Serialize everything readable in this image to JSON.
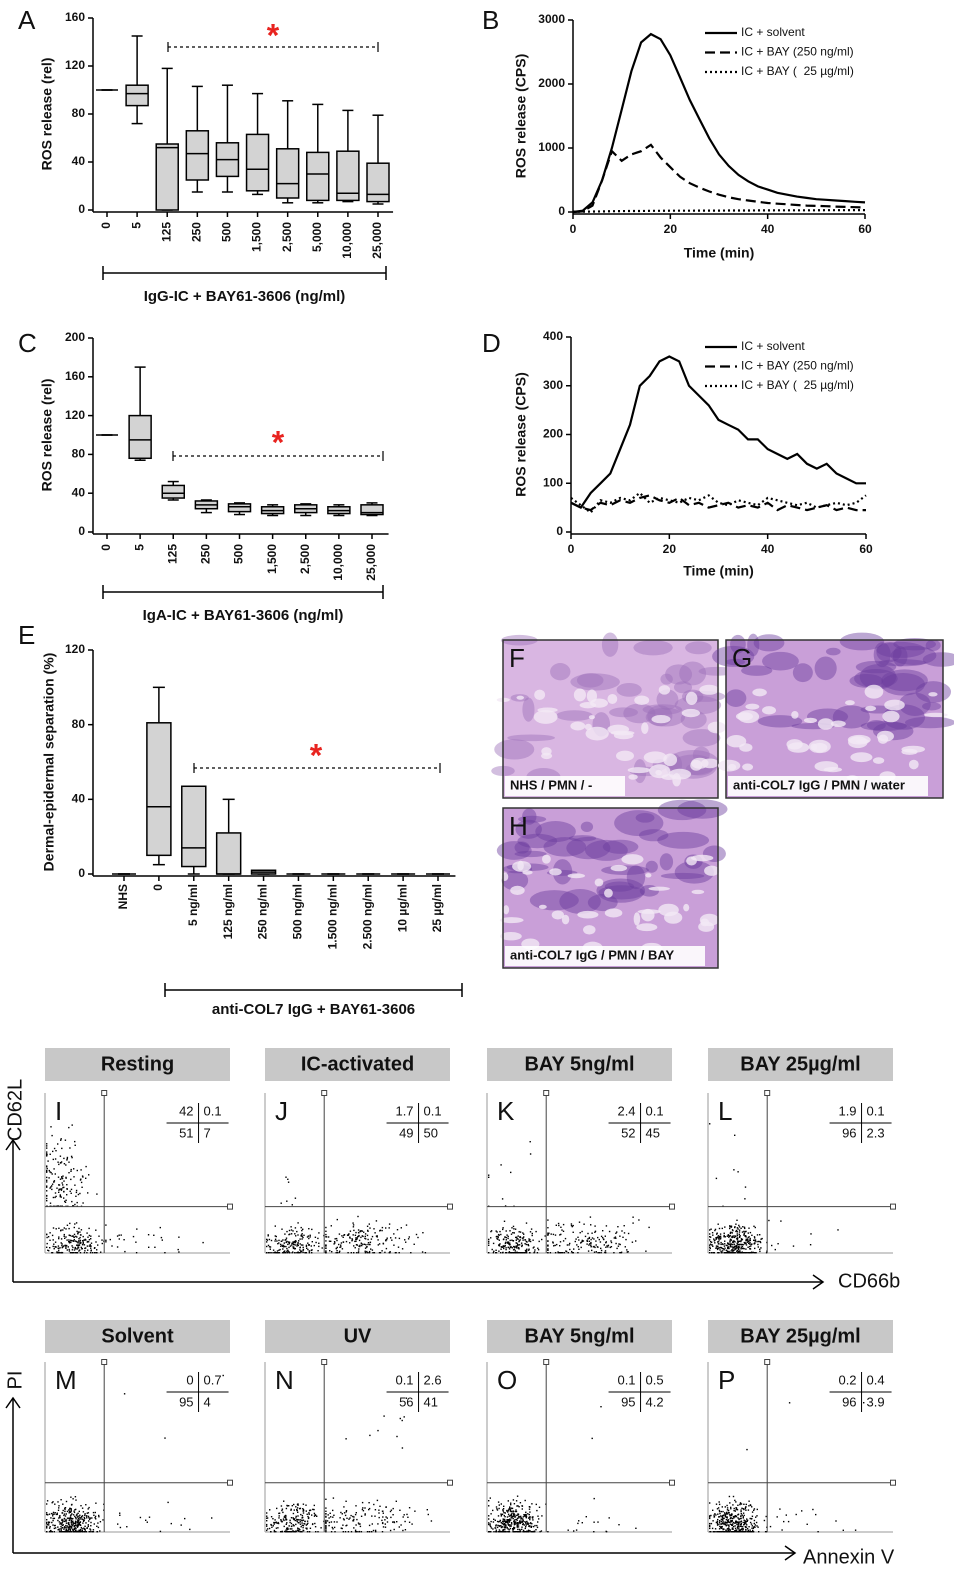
{
  "chart_data": [
    {
      "type": "box",
      "label": "A",
      "ylabel": "ROS release (rel)",
      "xlabel": "IgG-IC + BAY61-3606 (ng/ml)",
      "annotation": "*",
      "color": "#d3d3d3",
      "categories": [
        "0",
        "5",
        "125",
        "250",
        "500",
        "1,500",
        "2,500",
        "5,000",
        "10,000",
        "25,000"
      ],
      "boxes": [
        {
          "min": 100,
          "q1": 100,
          "median": 100,
          "q3": 100,
          "max": 100
        },
        {
          "min": 72,
          "q1": 87,
          "median": 97,
          "q3": 104,
          "max": 145
        },
        {
          "min": 0,
          "q1": 0,
          "median": 52,
          "q3": 55,
          "max": 118
        },
        {
          "min": 15,
          "q1": 25,
          "median": 47,
          "q3": 66,
          "max": 103
        },
        {
          "min": 15,
          "q1": 28,
          "median": 42,
          "q3": 56,
          "max": 104
        },
        {
          "min": 13,
          "q1": 16,
          "median": 34,
          "q3": 63,
          "max": 97
        },
        {
          "min": 6,
          "q1": 10,
          "median": 22,
          "q3": 51,
          "max": 91
        },
        {
          "min": 6,
          "q1": 8,
          "median": 30,
          "q3": 48,
          "max": 88
        },
        {
          "min": 7,
          "q1": 8,
          "median": 14,
          "q3": 49,
          "max": 83
        },
        {
          "min": 5,
          "q1": 7,
          "median": 13,
          "q3": 39,
          "max": 79
        }
      ],
      "ylim": [
        0,
        160
      ],
      "yticks": [
        0,
        40,
        80,
        120,
        160
      ]
    },
    {
      "type": "line",
      "label": "B",
      "ylabel": "ROS release (CPS)",
      "xlabel": "Time (min)",
      "xlim": [
        0,
        60
      ],
      "xticks": [
        0,
        20,
        40,
        60
      ],
      "ylim": [
        0,
        3000
      ],
      "yticks": [
        0,
        1000,
        2000,
        3000
      ],
      "x": [
        0,
        2,
        4,
        6,
        8,
        10,
        12,
        14,
        16,
        18,
        20,
        22,
        24,
        26,
        28,
        30,
        32,
        34,
        36,
        38,
        40,
        42,
        44,
        46,
        48,
        50,
        52,
        54,
        56,
        58,
        60
      ],
      "series": [
        {
          "name": "IC + solvent",
          "color": "#000000",
          "style": "solid",
          "values": [
            0,
            20,
            150,
            500,
            1000,
            1600,
            2200,
            2650,
            2780,
            2700,
            2450,
            2100,
            1750,
            1450,
            1150,
            900,
            720,
            580,
            480,
            400,
            350,
            300,
            270,
            240,
            220,
            200,
            190,
            180,
            170,
            160,
            150
          ]
        },
        {
          "name": "IC + BAY (250 ng/ml)",
          "color": "#000000",
          "style": "dashed",
          "values": [
            0,
            10,
            100,
            500,
            950,
            800,
            900,
            950,
            1050,
            850,
            700,
            550,
            450,
            380,
            320,
            270,
            230,
            200,
            180,
            160,
            140,
            130,
            120,
            110,
            100,
            95,
            90,
            85,
            80,
            75,
            70
          ]
        },
        {
          "name": "IC + BAY (  25 µg/ml)",
          "color": "#000000",
          "style": "dotted",
          "values": [
            5,
            5,
            8,
            10,
            12,
            14,
            15,
            16,
            18,
            18,
            20,
            20,
            20,
            22,
            22,
            22,
            24,
            24,
            24,
            25,
            25,
            26,
            26,
            26,
            27,
            27,
            28,
            28,
            28,
            30,
            30
          ]
        }
      ]
    },
    {
      "type": "box",
      "label": "C",
      "ylabel": "ROS release (rel)",
      "xlabel": "IgA-IC + BAY61-3606 (ng/ml)",
      "annotation": "*",
      "color": "#d3d3d3",
      "categories": [
        "0",
        "5",
        "125",
        "250",
        "500",
        "1,500",
        "2,500",
        "10,000",
        "25,000"
      ],
      "boxes": [
        {
          "min": 100,
          "q1": 100,
          "median": 100,
          "q3": 100,
          "max": 100
        },
        {
          "min": 74,
          "q1": 76,
          "median": 95,
          "q3": 120,
          "max": 170
        },
        {
          "min": 33,
          "q1": 35,
          "median": 40,
          "q3": 48,
          "max": 52
        },
        {
          "min": 20,
          "q1": 24,
          "median": 28,
          "q3": 32,
          "max": 33
        },
        {
          "min": 18,
          "q1": 21,
          "median": 26,
          "q3": 29,
          "max": 30
        },
        {
          "min": 17,
          "q1": 19,
          "median": 22,
          "q3": 26,
          "max": 28
        },
        {
          "min": 17,
          "q1": 20,
          "median": 24,
          "q3": 28,
          "max": 29
        },
        {
          "min": 17,
          "q1": 19,
          "median": 22,
          "q3": 26,
          "max": 28
        },
        {
          "min": 17,
          "q1": 18,
          "median": 20,
          "q3": 28,
          "max": 30
        }
      ],
      "ylim": [
        0,
        200
      ],
      "yticks": [
        0,
        40,
        80,
        120,
        160,
        200
      ]
    },
    {
      "type": "line",
      "label": "D",
      "ylabel": "ROS release (CPS)",
      "xlabel": "Time (min)",
      "xlim": [
        0,
        60
      ],
      "xticks": [
        0,
        20,
        40,
        60
      ],
      "ylim": [
        0,
        400
      ],
      "yticks": [
        0,
        100,
        200,
        300,
        400
      ],
      "x": [
        0,
        2,
        4,
        6,
        8,
        10,
        12,
        14,
        16,
        18,
        20,
        22,
        24,
        26,
        28,
        30,
        32,
        34,
        36,
        38,
        40,
        42,
        44,
        46,
        48,
        50,
        52,
        54,
        56,
        58,
        60
      ],
      "series": [
        {
          "name": "IC + solvent",
          "color": "#000000",
          "style": "solid",
          "values": [
            60,
            50,
            80,
            100,
            120,
            170,
            220,
            300,
            320,
            350,
            360,
            350,
            300,
            280,
            260,
            230,
            220,
            210,
            190,
            190,
            170,
            160,
            150,
            160,
            140,
            130,
            140,
            120,
            110,
            100,
            100
          ]
        },
        {
          "name": "IC + BAY (250 ng/ml)",
          "color": "#000000",
          "style": "dashed",
          "values": [
            60,
            50,
            45,
            60,
            55,
            65,
            60,
            70,
            75,
            65,
            60,
            70,
            55,
            60,
            50,
            55,
            60,
            50,
            55,
            50,
            60,
            45,
            55,
            50,
            45,
            50,
            55,
            45,
            50,
            45,
            45
          ]
        },
        {
          "name": "IC + BAY (  25 µg/ml)",
          "color": "#000000",
          "style": "dotted",
          "values": [
            70,
            55,
            40,
            65,
            60,
            70,
            65,
            80,
            60,
            70,
            65,
            60,
            70,
            65,
            75,
            60,
            55,
            65,
            60,
            55,
            70,
            65,
            60,
            55,
            60,
            50,
            55,
            60,
            55,
            60,
            75
          ]
        }
      ]
    },
    {
      "type": "box",
      "label": "E",
      "ylabel": "Dermal-epidermal separation (%)",
      "xlabel": "anti-COL7 IgG + BAY61-3606",
      "annotation": "*",
      "color": "#d3d3d3",
      "categories": [
        "NHS",
        "0",
        "5 ng/ml",
        "125 ng/ml",
        "250 ng/ml",
        "500 ng/ml",
        "1.500 ng/ml",
        "2.500 ng/ml",
        "10 µg/ml",
        "25 µg/ml"
      ],
      "boxes": [
        {
          "min": 0,
          "q1": 0,
          "median": 0,
          "q3": 0,
          "max": 0
        },
        {
          "min": 5,
          "q1": 10,
          "median": 36,
          "q3": 81,
          "max": 100
        },
        {
          "min": 0,
          "q1": 4,
          "median": 14,
          "q3": 47,
          "max": 47
        },
        {
          "min": 0,
          "q1": 0,
          "median": 0,
          "q3": 22,
          "max": 40
        },
        {
          "min": 0,
          "q1": 0,
          "median": 1,
          "q3": 2,
          "max": 2
        },
        {
          "min": 0,
          "q1": 0,
          "median": 0,
          "q3": 0,
          "max": 0
        },
        {
          "min": 0,
          "q1": 0,
          "median": 0,
          "q3": 0,
          "max": 0
        },
        {
          "min": 0,
          "q1": 0,
          "median": 0,
          "q3": 0,
          "max": 0
        },
        {
          "min": 0,
          "q1": 0,
          "median": 0,
          "q3": 0,
          "max": 0
        },
        {
          "min": 0,
          "q1": 0,
          "median": 0,
          "q3": 0,
          "max": 0
        }
      ],
      "ylim": [
        0,
        120
      ],
      "yticks": [
        0,
        40,
        80,
        120
      ]
    }
  ],
  "histology": [
    {
      "label": "F",
      "caption": "NHS / PMN / -"
    },
    {
      "label": "G",
      "caption": "anti-COL7 IgG / PMN / water"
    },
    {
      "label": "H",
      "caption": "anti-COL7 IgG / PMN / BAY"
    }
  ],
  "flow": {
    "rows": [
      {
        "ylabel": "CD62L",
        "xlabel": "CD66b",
        "panels": [
          {
            "title": "Resting",
            "label": "I",
            "quadrants": [
              42,
              0.1,
              51,
              7
            ]
          },
          {
            "title": "IC-activated",
            "label": "J",
            "quadrants": [
              1.7,
              0.1,
              49,
              50
            ]
          },
          {
            "title": "BAY 5ng/ml",
            "label": "K",
            "quadrants": [
              2.4,
              0.1,
              52,
              45
            ]
          },
          {
            "title": "BAY 25µg/ml",
            "label": "L",
            "quadrants": [
              1.9,
              0.1,
              96,
              2.3
            ]
          }
        ]
      },
      {
        "ylabel": "PI",
        "xlabel": "Annexin V",
        "panels": [
          {
            "title": "Solvent",
            "label": "M",
            "quadrants": [
              0,
              0.7,
              95,
              4
            ]
          },
          {
            "title": "UV",
            "label": "N",
            "quadrants": [
              0.1,
              2.6,
              56,
              41
            ]
          },
          {
            "title": "BAY 5ng/ml",
            "label": "O",
            "quadrants": [
              0.1,
              0.5,
              95,
              4.2
            ]
          },
          {
            "title": "BAY 25µg/ml",
            "label": "P",
            "quadrants": [
              0.2,
              0.4,
              96,
              3.9
            ]
          }
        ]
      }
    ]
  }
}
